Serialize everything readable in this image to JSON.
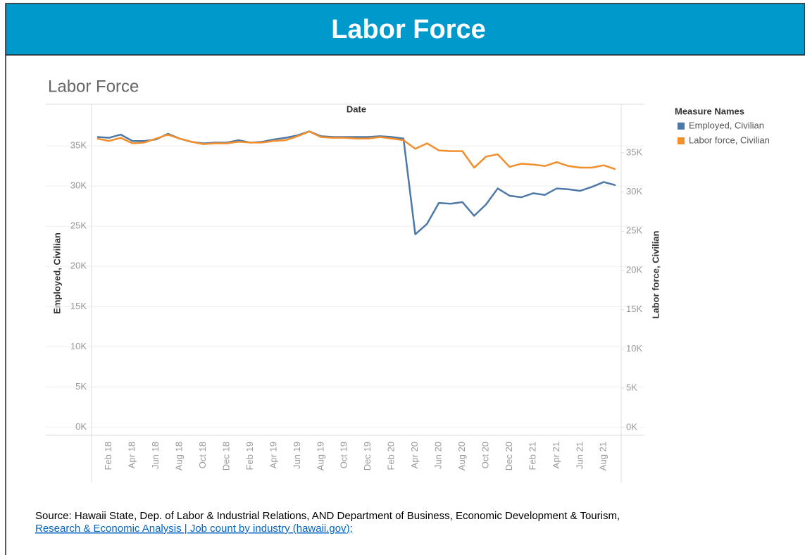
{
  "banner": "Labor Force",
  "source": {
    "text": "Source:  Hawaii State, Dep. of Labor & Industrial Relations, AND Department of Business, Economic Development & Tourism,",
    "link": "Research & Economic Analysis | Job count by industry (hawaii.gov);"
  },
  "chart_data": {
    "type": "line",
    "title": "Labor Force",
    "x_label": "Date",
    "y_label": "Employed, Civilian",
    "y2_label": "Labor force, Civilian",
    "legend_title": "Measure Names",
    "legend": "right",
    "categories": [
      null,
      "Feb 18",
      null,
      "Apr 18",
      null,
      "Jun 18",
      null,
      "Aug 18",
      null,
      "Oct 18",
      null,
      "Dec 18",
      null,
      "Feb 19",
      null,
      "Apr 19",
      null,
      "Jun 19",
      null,
      "Aug 19",
      null,
      "Oct 19",
      null,
      "Dec 19",
      null,
      "Feb 20",
      null,
      "Apr 20",
      null,
      "Jun 20",
      null,
      "Aug 20",
      null,
      "Oct 20",
      null,
      "Dec 20",
      null,
      "Feb 21",
      null,
      "Apr 21",
      null,
      "Jun 21",
      null,
      "Aug 21",
      null
    ],
    "series": [
      {
        "name": "Employed, Civilian",
        "color": "#4e79a7",
        "values": [
          36100,
          36000,
          36400,
          35600,
          35600,
          35800,
          36500,
          35900,
          35500,
          35300,
          35400,
          35400,
          35700,
          35400,
          35500,
          35800,
          36000,
          36300,
          36800,
          36200,
          36100,
          36100,
          36100,
          36100,
          36200,
          36100,
          35900,
          24000,
          25300,
          27900,
          27800,
          28000,
          26300,
          27700,
          29700,
          28800,
          28600,
          29100,
          28900,
          29700,
          29600,
          29400,
          29900,
          30500,
          30100
        ]
      },
      {
        "name": "Labor force, Civilian",
        "color": "#f28e2b",
        "axis": "y2",
        "values": [
          36800,
          36500,
          36900,
          36200,
          36300,
          36800,
          37300,
          36800,
          36400,
          36100,
          36200,
          36200,
          36400,
          36300,
          36300,
          36500,
          36600,
          37100,
          37700,
          37000,
          36900,
          36900,
          36800,
          36800,
          37000,
          36800,
          36600,
          35500,
          36200,
          35300,
          35200,
          35200,
          33100,
          34500,
          34800,
          33200,
          33600,
          33500,
          33300,
          33800,
          33300,
          33100,
          33100,
          33400,
          32900
        ]
      }
    ],
    "ylim": [
      -1000,
      40000
    ],
    "yticks": [
      {
        "value": 0,
        "label": "0K"
      },
      {
        "value": 5000,
        "label": "5K"
      },
      {
        "value": 10000,
        "label": "10K"
      },
      {
        "value": 15000,
        "label": "15K"
      },
      {
        "value": 20000,
        "label": "20K"
      },
      {
        "value": 25000,
        "label": "25K"
      },
      {
        "value": 30000,
        "label": "30K"
      },
      {
        "value": 35000,
        "label": "35K"
      }
    ],
    "y2lim": [
      -1000,
      41000
    ],
    "y2ticks": [
      {
        "value": 0,
        "label": "0K"
      },
      {
        "value": 5000,
        "label": "5K"
      },
      {
        "value": 10000,
        "label": "10K"
      },
      {
        "value": 15000,
        "label": "15K"
      },
      {
        "value": 20000,
        "label": "20K"
      },
      {
        "value": 25000,
        "label": "25K"
      },
      {
        "value": 30000,
        "label": "30K"
      },
      {
        "value": 35000,
        "label": "35K"
      }
    ],
    "grid": true
  }
}
